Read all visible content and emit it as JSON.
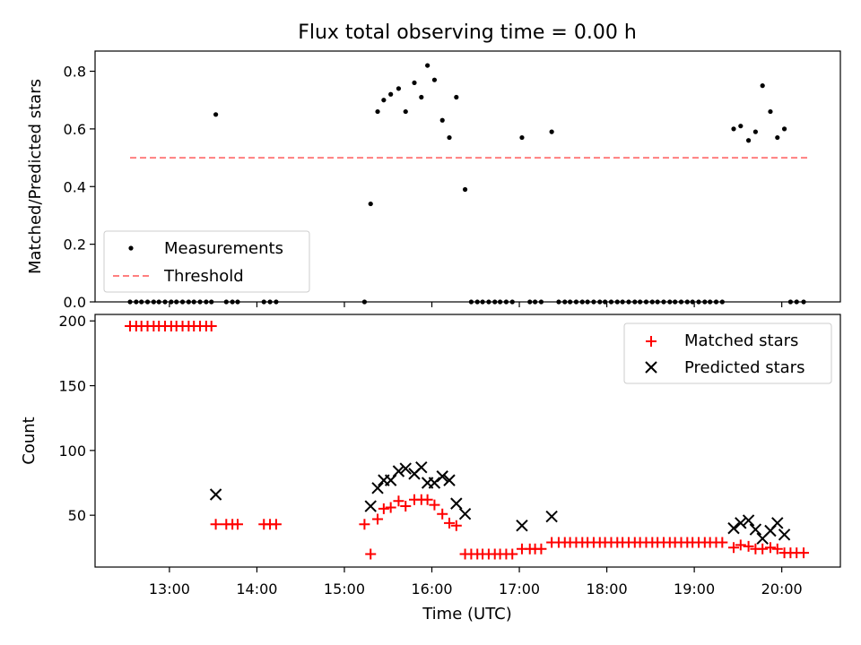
{
  "figure": {
    "title": "Flux total observing time = 0.00 h",
    "xlabel": "Time (UTC)",
    "x_ticks": [
      "13:00",
      "14:00",
      "15:00",
      "16:00",
      "17:00",
      "18:00",
      "19:00",
      "20:00"
    ],
    "x_tick_hours": [
      13,
      14,
      15,
      16,
      17,
      18,
      19,
      20
    ],
    "x_range_hours": [
      12.15,
      20.67
    ]
  },
  "chart_data": [
    {
      "type": "scatter",
      "panel": "top",
      "ylabel": "Matched/Predicted stars",
      "ylim": [
        0,
        0.87
      ],
      "y_ticks": [
        0.0,
        0.2,
        0.4,
        0.6,
        0.8
      ],
      "y_tick_labels": [
        "0.0",
        "0.2",
        "0.4",
        "0.6",
        "0.8"
      ],
      "legend_position": "lower-left",
      "series": [
        {
          "name": "Measurements",
          "color": "#000000",
          "marker": "dot",
          "points": [
            [
              12.55,
              0
            ],
            [
              12.62,
              0
            ],
            [
              12.68,
              0
            ],
            [
              12.75,
              0
            ],
            [
              12.82,
              0
            ],
            [
              12.88,
              0
            ],
            [
              12.95,
              0
            ],
            [
              13.02,
              0
            ],
            [
              13.08,
              0
            ],
            [
              13.15,
              0
            ],
            [
              13.22,
              0
            ],
            [
              13.28,
              0
            ],
            [
              13.35,
              0
            ],
            [
              13.42,
              0
            ],
            [
              13.48,
              0
            ],
            [
              13.53,
              0.65
            ],
            [
              13.65,
              0
            ],
            [
              13.72,
              0
            ],
            [
              13.78,
              0
            ],
            [
              14.08,
              0
            ],
            [
              14.15,
              0
            ],
            [
              14.22,
              0
            ],
            [
              15.23,
              0
            ],
            [
              15.3,
              0.34
            ],
            [
              15.38,
              0.66
            ],
            [
              15.45,
              0.7
            ],
            [
              15.53,
              0.72
            ],
            [
              15.62,
              0.74
            ],
            [
              15.7,
              0.66
            ],
            [
              15.8,
              0.76
            ],
            [
              15.88,
              0.71
            ],
            [
              15.95,
              0.82
            ],
            [
              16.03,
              0.77
            ],
            [
              16.12,
              0.63
            ],
            [
              16.2,
              0.57
            ],
            [
              16.28,
              0.71
            ],
            [
              16.38,
              0.39
            ],
            [
              16.45,
              0
            ],
            [
              16.52,
              0
            ],
            [
              16.58,
              0
            ],
            [
              16.65,
              0
            ],
            [
              16.72,
              0
            ],
            [
              16.78,
              0
            ],
            [
              16.85,
              0
            ],
            [
              16.92,
              0
            ],
            [
              17.03,
              0.57
            ],
            [
              17.12,
              0
            ],
            [
              17.18,
              0
            ],
            [
              17.25,
              0
            ],
            [
              17.37,
              0.59
            ],
            [
              17.45,
              0
            ],
            [
              17.52,
              0
            ],
            [
              17.58,
              0
            ],
            [
              17.65,
              0
            ],
            [
              17.72,
              0
            ],
            [
              17.78,
              0
            ],
            [
              17.85,
              0
            ],
            [
              17.92,
              0
            ],
            [
              17.98,
              0
            ],
            [
              18.05,
              0
            ],
            [
              18.12,
              0
            ],
            [
              18.18,
              0
            ],
            [
              18.25,
              0
            ],
            [
              18.32,
              0
            ],
            [
              18.38,
              0
            ],
            [
              18.45,
              0
            ],
            [
              18.52,
              0
            ],
            [
              18.58,
              0
            ],
            [
              18.65,
              0
            ],
            [
              18.72,
              0
            ],
            [
              18.78,
              0
            ],
            [
              18.85,
              0
            ],
            [
              18.92,
              0
            ],
            [
              18.98,
              0
            ],
            [
              19.05,
              0
            ],
            [
              19.12,
              0
            ],
            [
              19.18,
              0
            ],
            [
              19.25,
              0
            ],
            [
              19.32,
              0
            ],
            [
              19.45,
              0.6
            ],
            [
              19.53,
              0.61
            ],
            [
              19.62,
              0.56
            ],
            [
              19.7,
              0.59
            ],
            [
              19.78,
              0.75
            ],
            [
              19.87,
              0.66
            ],
            [
              19.95,
              0.57
            ],
            [
              20.03,
              0.6
            ],
            [
              20.1,
              0
            ],
            [
              20.17,
              0
            ],
            [
              20.25,
              0
            ]
          ]
        },
        {
          "name": "Threshold",
          "color": "#ff7f7f",
          "style": "dashed",
          "x": [
            12.55,
            20.3
          ],
          "y": [
            0.5,
            0.5
          ]
        }
      ]
    },
    {
      "type": "scatter",
      "panel": "bottom",
      "ylabel": "Count",
      "ylim": [
        10,
        205
      ],
      "y_ticks": [
        50,
        100,
        150,
        200
      ],
      "y_tick_labels": [
        "50",
        "100",
        "150",
        "200"
      ],
      "legend_position": "upper-right",
      "series": [
        {
          "name": "Matched stars",
          "color": "#ff0000",
          "marker": "plus",
          "points": [
            [
              12.55,
              196
            ],
            [
              12.62,
              196
            ],
            [
              12.68,
              196
            ],
            [
              12.75,
              196
            ],
            [
              12.82,
              196
            ],
            [
              12.88,
              196
            ],
            [
              12.95,
              196
            ],
            [
              13.02,
              196
            ],
            [
              13.08,
              196
            ],
            [
              13.15,
              196
            ],
            [
              13.22,
              196
            ],
            [
              13.28,
              196
            ],
            [
              13.35,
              196
            ],
            [
              13.42,
              196
            ],
            [
              13.48,
              196
            ],
            [
              13.53,
              43
            ],
            [
              13.65,
              43
            ],
            [
              13.72,
              43
            ],
            [
              13.78,
              43
            ],
            [
              14.08,
              43
            ],
            [
              14.15,
              43
            ],
            [
              14.22,
              43
            ],
            [
              15.23,
              43
            ],
            [
              15.3,
              20
            ],
            [
              15.38,
              47
            ],
            [
              15.45,
              55
            ],
            [
              15.53,
              56
            ],
            [
              15.62,
              61
            ],
            [
              15.7,
              57
            ],
            [
              15.8,
              62
            ],
            [
              15.88,
              62
            ],
            [
              15.95,
              62
            ],
            [
              16.03,
              58
            ],
            [
              16.12,
              51
            ],
            [
              16.2,
              44
            ],
            [
              16.28,
              42
            ],
            [
              16.38,
              20
            ],
            [
              16.45,
              20
            ],
            [
              16.52,
              20
            ],
            [
              16.58,
              20
            ],
            [
              16.65,
              20
            ],
            [
              16.72,
              20
            ],
            [
              16.78,
              20
            ],
            [
              16.85,
              20
            ],
            [
              16.92,
              20
            ],
            [
              17.03,
              24
            ],
            [
              17.12,
              24
            ],
            [
              17.18,
              24
            ],
            [
              17.25,
              24
            ],
            [
              17.37,
              29
            ],
            [
              17.45,
              29
            ],
            [
              17.52,
              29
            ],
            [
              17.58,
              29
            ],
            [
              17.65,
              29
            ],
            [
              17.72,
              29
            ],
            [
              17.78,
              29
            ],
            [
              17.85,
              29
            ],
            [
              17.92,
              29
            ],
            [
              17.98,
              29
            ],
            [
              18.05,
              29
            ],
            [
              18.12,
              29
            ],
            [
              18.18,
              29
            ],
            [
              18.25,
              29
            ],
            [
              18.32,
              29
            ],
            [
              18.38,
              29
            ],
            [
              18.45,
              29
            ],
            [
              18.52,
              29
            ],
            [
              18.58,
              29
            ],
            [
              18.65,
              29
            ],
            [
              18.72,
              29
            ],
            [
              18.78,
              29
            ],
            [
              18.85,
              29
            ],
            [
              18.92,
              29
            ],
            [
              18.98,
              29
            ],
            [
              19.05,
              29
            ],
            [
              19.12,
              29
            ],
            [
              19.18,
              29
            ],
            [
              19.25,
              29
            ],
            [
              19.32,
              29
            ],
            [
              19.45,
              25
            ],
            [
              19.53,
              27
            ],
            [
              19.62,
              26
            ],
            [
              19.7,
              24
            ],
            [
              19.78,
              24
            ],
            [
              19.87,
              25
            ],
            [
              19.95,
              24
            ],
            [
              20.03,
              21
            ],
            [
              20.1,
              21
            ],
            [
              20.17,
              21
            ],
            [
              20.25,
              21
            ]
          ]
        },
        {
          "name": "Predicted stars",
          "color": "#000000",
          "marker": "cross",
          "points": [
            [
              13.53,
              66
            ],
            [
              15.3,
              57
            ],
            [
              15.38,
              71
            ],
            [
              15.45,
              77
            ],
            [
              15.53,
              77
            ],
            [
              15.62,
              84
            ],
            [
              15.7,
              86
            ],
            [
              15.8,
              82
            ],
            [
              15.88,
              87
            ],
            [
              15.95,
              75
            ],
            [
              16.03,
              75
            ],
            [
              16.12,
              80
            ],
            [
              16.2,
              77
            ],
            [
              16.28,
              59
            ],
            [
              16.38,
              51
            ],
            [
              17.03,
              42
            ],
            [
              17.37,
              49
            ],
            [
              19.45,
              40
            ],
            [
              19.53,
              44
            ],
            [
              19.62,
              46
            ],
            [
              19.7,
              39
            ],
            [
              19.78,
              32
            ],
            [
              19.87,
              38
            ],
            [
              19.95,
              44
            ],
            [
              20.03,
              35
            ]
          ]
        }
      ]
    }
  ]
}
